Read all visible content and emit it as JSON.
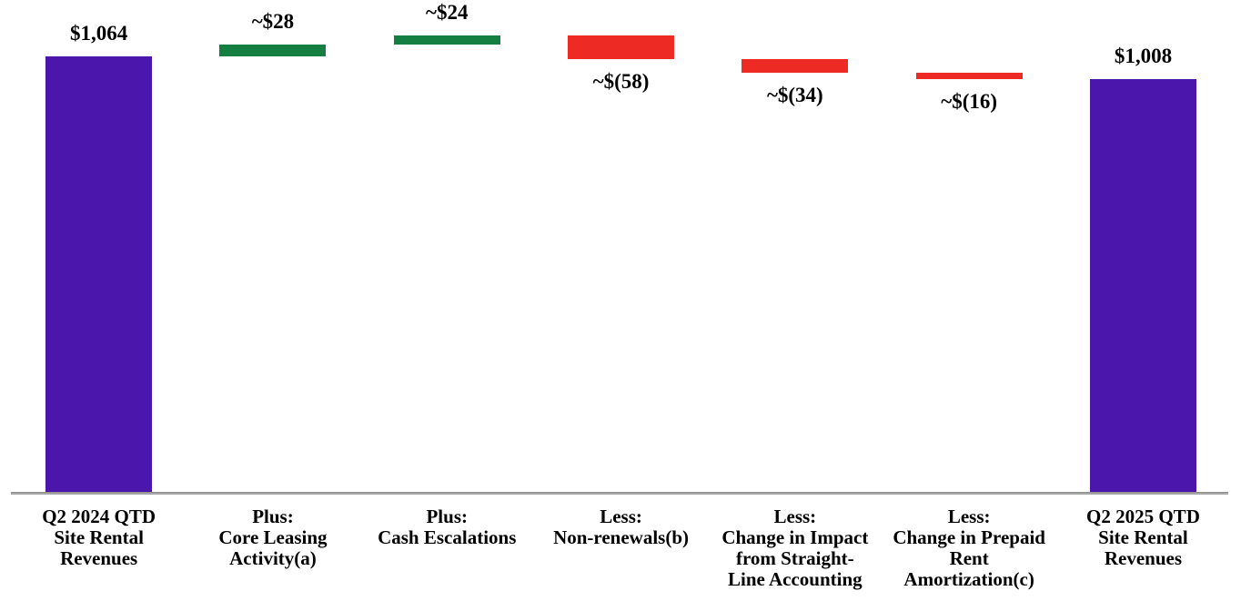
{
  "chart_data": {
    "type": "bar",
    "subtype": "waterfall",
    "title": "",
    "xlabel": "",
    "ylabel": "",
    "grid": false,
    "legend": false,
    "baseline": 0,
    "ylim": [
      0,
      1200
    ],
    "columns": [
      {
        "category": "Q2 2024 QTD\nSite Rental\nRevenues",
        "label": "$1,064",
        "value": 1064,
        "kind": "total",
        "label_pos": "above"
      },
      {
        "category": "Plus:\nCore Leasing\nActivity(a)",
        "label": "~$28",
        "value": 28,
        "kind": "increase",
        "label_pos": "above"
      },
      {
        "category": "Plus:\nCash Escalations",
        "label": "~$24",
        "value": 24,
        "kind": "increase",
        "label_pos": "above"
      },
      {
        "category": "Less:\nNon-renewals(b)",
        "label": "~$(58)",
        "value": -58,
        "kind": "decrease",
        "label_pos": "below"
      },
      {
        "category": "Less:\nChange in Impact\nfrom Straight-\nLine Accounting",
        "label": "~$(34)",
        "value": -34,
        "kind": "decrease",
        "label_pos": "below"
      },
      {
        "category": "Less:\nChange in Prepaid\nRent\nAmortization(c)",
        "label": "~$(16)",
        "value": -16,
        "kind": "decrease",
        "label_pos": "below"
      },
      {
        "category": "Q2 2025 QTD\nSite Rental\nRevenues",
        "label": "$1,008",
        "value": 1008,
        "kind": "total",
        "label_pos": "above"
      }
    ],
    "colors": {
      "total": "#4a16ac",
      "increase": "#157f42",
      "decrease": "#ee2a24",
      "axis_line": "#a6a6a6",
      "label_text": "#000000"
    }
  }
}
